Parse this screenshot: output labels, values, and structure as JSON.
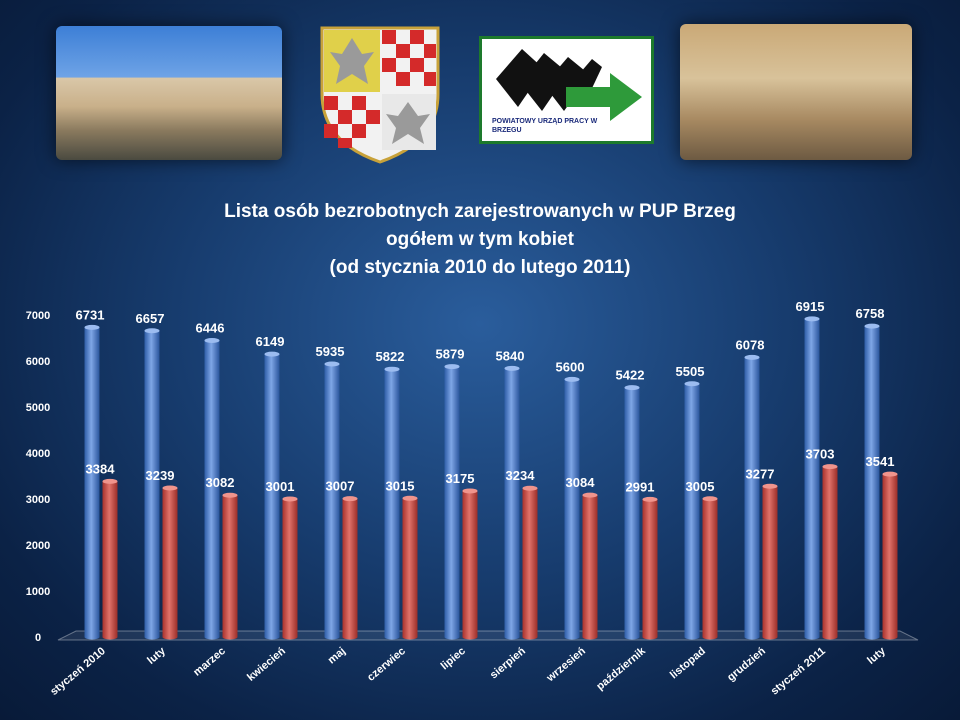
{
  "header": {
    "logo_text": "POWIATOWY URZĄD PRACY W BRZEGU"
  },
  "title": {
    "line1": "Lista osób bezrobotnych zarejestrowanych  w  PUP Brzeg",
    "line2": "ogółem w tym kobiet",
    "line3": "(od stycznia 2010 do lutego 2011)"
  },
  "colors": {
    "series_total": "#4a78c4",
    "series_women": "#c44a44"
  },
  "chart_data": {
    "type": "bar",
    "categories": [
      "styczeń 2010",
      "luty",
      "marzec",
      "kwiecień",
      "maj",
      "czerwiec",
      "lipiec",
      "sierpień",
      "wrzesień",
      "październik",
      "listopad",
      "grudzień",
      "styczeń 2011",
      "luty"
    ],
    "series": [
      {
        "values": [
          6731,
          6657,
          6446,
          6149,
          5935,
          5822,
          5879,
          5840,
          5600,
          5422,
          5505,
          6078,
          6915,
          6758
        ]
      },
      {
        "values": [
          3384,
          3239,
          3082,
          3001,
          3007,
          3015,
          3175,
          3234,
          3084,
          2991,
          3005,
          3277,
          3703,
          3541
        ]
      }
    ],
    "y_ticks": [
      "0",
      "1000",
      "2000",
      "3000",
      "4000",
      "5000",
      "6000",
      "7000"
    ],
    "ylim": [
      0,
      7000
    ],
    "grid": false,
    "legend": "none"
  }
}
